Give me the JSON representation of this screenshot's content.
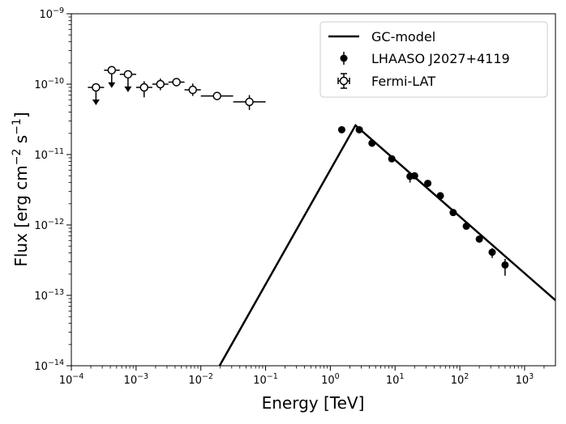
{
  "chart_data": {
    "type": "scatter",
    "xscale": "log",
    "yscale": "log",
    "xlim": [
      0.0001,
      3000
    ],
    "ylim": [
      1e-14,
      1e-09
    ],
    "xlabel": "Energy [TeV]",
    "ylabel": "Flux [erg cm⁻² s⁻¹]",
    "ylabel_parts": {
      "prefix": "Flux [erg cm",
      "exp1": "−2",
      "mid": " s",
      "exp2": "−1",
      "suffix": "]"
    },
    "x_ticks": [
      {
        "value": 0.0001,
        "base": "10",
        "exp": "−4"
      },
      {
        "value": 0.001,
        "base": "10",
        "exp": "−3"
      },
      {
        "value": 0.01,
        "base": "10",
        "exp": "−2"
      },
      {
        "value": 0.1,
        "base": "10",
        "exp": "−1"
      },
      {
        "value": 1,
        "base": "10",
        "exp": "0"
      },
      {
        "value": 10,
        "base": "10",
        "exp": "1"
      },
      {
        "value": 100,
        "base": "10",
        "exp": "2"
      },
      {
        "value": 1000,
        "base": "10",
        "exp": "3"
      }
    ],
    "y_ticks": [
      {
        "value": 1e-14,
        "base": "10",
        "exp": "−14"
      },
      {
        "value": 1e-13,
        "base": "10",
        "exp": "−13"
      },
      {
        "value": 1e-12,
        "base": "10",
        "exp": "−12"
      },
      {
        "value": 1e-11,
        "base": "10",
        "exp": "−11"
      },
      {
        "value": 1e-10,
        "base": "10",
        "exp": "−10"
      },
      {
        "value": 1e-09,
        "base": "10",
        "exp": "−9"
      }
    ],
    "legend_position": "top-right",
    "series": [
      {
        "name": "GC-model",
        "kind": "line",
        "points": [
          [
            0.0195,
            1e-14
          ],
          [
            2.45,
            2.6e-11
          ],
          [
            3000,
            8.5e-14
          ]
        ]
      },
      {
        "name": "LHAASO J2027+4119",
        "kind": "points",
        "points": [
          {
            "x": 1.5,
            "y": 2.25e-11,
            "lo": 2.25e-11,
            "hi": 2.25e-11
          },
          {
            "x": 2.8,
            "y": 2.25e-11,
            "lo": 2.25e-11,
            "hi": 2.25e-11
          },
          {
            "x": 4.4,
            "y": 1.45e-11,
            "lo": 1.45e-11,
            "hi": 1.45e-11
          },
          {
            "x": 8.9,
            "y": 8.7e-12,
            "lo": 8.7e-12,
            "hi": 8.7e-12
          },
          {
            "x": 17,
            "y": 4.9e-12,
            "lo": 4e-12,
            "hi": 5.6e-12
          },
          {
            "x": 20,
            "y": 5e-12,
            "lo": 5e-12,
            "hi": 5e-12
          },
          {
            "x": 32,
            "y": 3.9e-12,
            "lo": 3.9e-12,
            "hi": 3.9e-12
          },
          {
            "x": 50,
            "y": 2.6e-12,
            "lo": 2.6e-12,
            "hi": 2.6e-12
          },
          {
            "x": 79,
            "y": 1.5e-12,
            "lo": 1.5e-12,
            "hi": 1.5e-12
          },
          {
            "x": 126,
            "y": 9.6e-13,
            "lo": 9.6e-13,
            "hi": 9.6e-13
          },
          {
            "x": 200,
            "y": 6.3e-13,
            "lo": 6.3e-13,
            "hi": 6.3e-13
          },
          {
            "x": 316,
            "y": 4.1e-13,
            "lo": 3.4e-13,
            "hi": 4.7e-13
          },
          {
            "x": 500,
            "y": 2.7e-13,
            "lo": 1.9e-13,
            "hi": 3.3e-13
          }
        ]
      },
      {
        "name": "Fermi-LAT",
        "kind": "points",
        "points": [
          {
            "x": 0.00024,
            "y": 9e-11,
            "xlo": 0.00018,
            "xhi": 0.00032,
            "upper_limit": true
          },
          {
            "x": 0.00042,
            "y": 1.58e-10,
            "xlo": 0.00032,
            "xhi": 0.00056,
            "upper_limit": true
          },
          {
            "x": 0.00075,
            "y": 1.38e-10,
            "xlo": 0.00056,
            "xhi": 0.001,
            "upper_limit": true
          },
          {
            "x": 0.00133,
            "y": 9e-11,
            "xlo": 0.001,
            "xhi": 0.00178,
            "lo": 6.5e-11,
            "hi": 1.1e-10
          },
          {
            "x": 0.00237,
            "y": 1e-10,
            "xlo": 0.00178,
            "xhi": 0.00316,
            "lo": 8.2e-11,
            "hi": 1.2e-10
          },
          {
            "x": 0.0042,
            "y": 1.07e-10,
            "xlo": 0.00316,
            "xhi": 0.0056,
            "lo": 1e-10,
            "hi": 1.15e-10
          },
          {
            "x": 0.0075,
            "y": 8.3e-11,
            "xlo": 0.0056,
            "xhi": 0.01,
            "lo": 6.8e-11,
            "hi": 1.02e-10
          },
          {
            "x": 0.0178,
            "y": 6.8e-11,
            "xlo": 0.01,
            "xhi": 0.0316,
            "lo": 6.8e-11,
            "hi": 6.8e-11
          },
          {
            "x": 0.0562,
            "y": 5.6e-11,
            "xlo": 0.0316,
            "xhi": 0.1,
            "lo": 4.3e-11,
            "hi": 7e-11
          }
        ]
      }
    ]
  }
}
